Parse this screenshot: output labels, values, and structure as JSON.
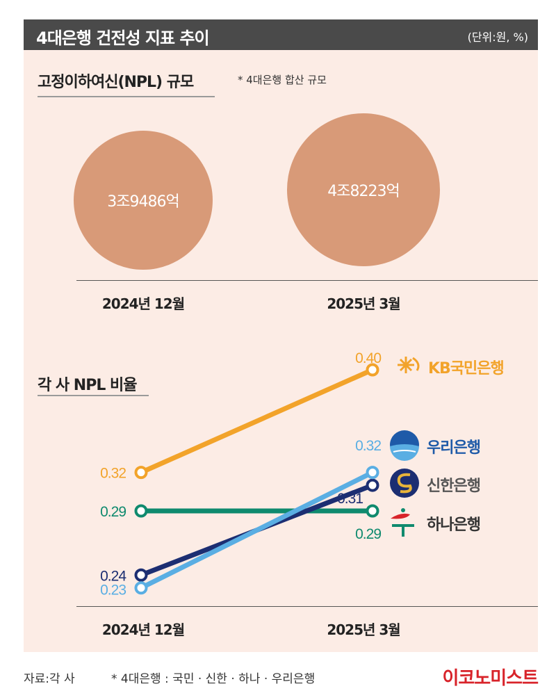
{
  "header": {
    "title": "4대은행 건전성 지표 추이",
    "unit": "(단위:원, %)"
  },
  "npl_section": {
    "title": "고정이하여신(NPL) 규모",
    "note": "* 4대은행 합산 규모"
  },
  "ratio_section": {
    "title": "각 사 NPL 비율"
  },
  "footer": {
    "source": "자료:각 사",
    "note": "* 4대은행 : 국민 · 신한 · 하나 · 우리은행",
    "brand": "이코노미스트"
  },
  "chart_data": [
    {
      "type": "bubble",
      "title": "고정이하여신(NPL) 규모",
      "categories": [
        "2024년 12월",
        "2025년 3월"
      ],
      "values_krw": [
        3948600000000,
        4822300000000
      ],
      "labels": [
        "3조9486억",
        "4조8223억"
      ],
      "color": "#d89a78"
    },
    {
      "type": "line",
      "title": "각 사 NPL 비율",
      "categories": [
        "2024년 12월",
        "2025년 3월"
      ],
      "series": [
        {
          "name": "KB국민은행",
          "values": [
            0.32,
            0.4
          ],
          "labels": [
            "0.32",
            "0.40"
          ],
          "color": "#f2a32a"
        },
        {
          "name": "우리은행",
          "values": [
            0.23,
            0.32
          ],
          "labels": [
            "0.23",
            "0.32"
          ],
          "color": "#5aaee3"
        },
        {
          "name": "신한은행",
          "values": [
            0.24,
            0.31
          ],
          "labels": [
            "0.24",
            "0.31"
          ],
          "color": "#1c2e72"
        },
        {
          "name": "하나은행",
          "values": [
            0.29,
            0.29
          ],
          "labels": [
            "0.29",
            "0.29"
          ],
          "color": "#0f8a6e"
        }
      ],
      "label_colors": {
        "KB국민은행": "#f2a32a",
        "우리은행": "#1e5aa8",
        "신한은행": "#555555",
        "하나은행": "#333333"
      },
      "grid": false,
      "legend": "right, labels beside line ends"
    }
  ]
}
